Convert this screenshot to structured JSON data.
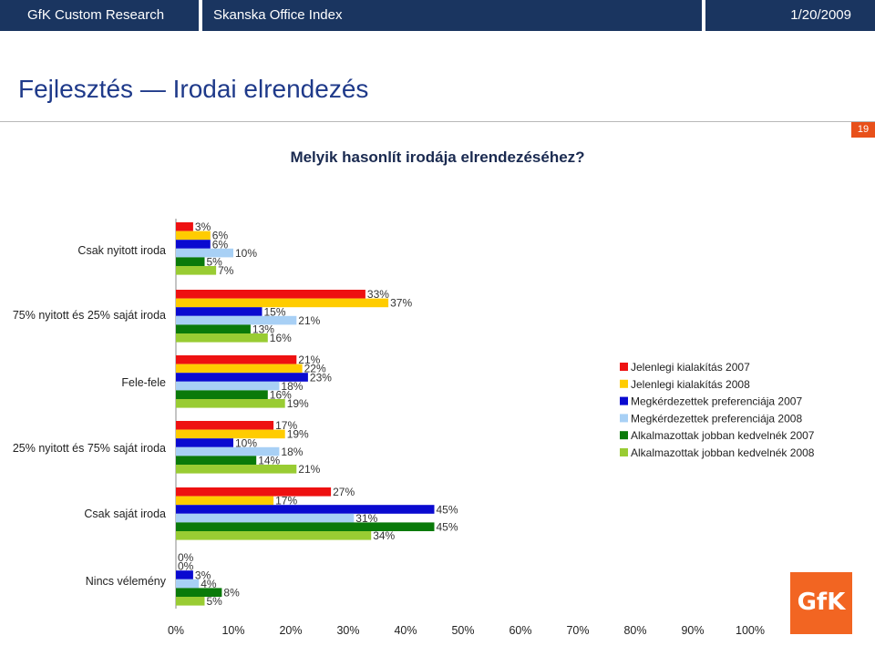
{
  "header": {
    "brand": "GfK Custom Research",
    "report": "Skanska Office Index",
    "date": "1/20/2009"
  },
  "page": {
    "title": "Fejlesztés — Irodai elrendezés",
    "number": "19"
  },
  "logo_text": "GfK",
  "chart_data": {
    "type": "bar",
    "orientation": "horizontal",
    "title": "Melyik hasonlít irodája elrendezéséhez?",
    "categories": [
      "Csak nyitott iroda",
      "75% nyitott és 25% saját iroda",
      "Fele-fele",
      "25% nyitott és 75% saját iroda",
      "Csak saját iroda",
      "Nincs vélemény"
    ],
    "series": [
      {
        "name": "Jelenlegi kialakítás 2007",
        "color": "#ee1111",
        "values": [
          3,
          33,
          21,
          17,
          27,
          0
        ]
      },
      {
        "name": "Jelenlegi kialakítás 2008",
        "color": "#ffcc00",
        "values": [
          6,
          37,
          22,
          19,
          17,
          0
        ]
      },
      {
        "name": "Megkérdezettek preferenciája 2007",
        "color": "#0a0ad0",
        "values": [
          6,
          15,
          23,
          10,
          45,
          3
        ]
      },
      {
        "name": "Megkérdezettek preferenciája 2008",
        "color": "#a8d0f5",
        "values": [
          10,
          21,
          18,
          18,
          31,
          4
        ]
      },
      {
        "name": "Alkalmazottak jobban kedvelnék 2007",
        "color": "#0a7a0a",
        "values": [
          5,
          13,
          16,
          14,
          45,
          8
        ]
      },
      {
        "name": "Alkalmazottak jobban kedvelnék 2008",
        "color": "#99cc33",
        "values": [
          7,
          16,
          19,
          21,
          34,
          5
        ]
      }
    ],
    "value_labels": [
      [
        "3%",
        "6%",
        "6%",
        "10%",
        "5%",
        "7%"
      ],
      [
        "33%",
        "37%",
        "15%",
        "21%",
        "13%",
        "16%"
      ],
      [
        "21%",
        "22%",
        "23%",
        "18%",
        "16%",
        "19%"
      ],
      [
        "17%",
        "19%",
        "10%",
        "18%",
        "14%",
        "21%"
      ],
      [
        "27%",
        "17%",
        "45%",
        "31%",
        "45%",
        "34%"
      ],
      [
        "0%",
        "0%",
        "3%",
        "4%",
        "8%",
        "5%"
      ]
    ],
    "xlim": [
      0,
      100
    ],
    "xticks": [
      "0%",
      "10%",
      "20%",
      "30%",
      "40%",
      "50%",
      "60%",
      "70%",
      "80%",
      "90%",
      "100%"
    ],
    "grid": false,
    "legend_position": "right"
  }
}
